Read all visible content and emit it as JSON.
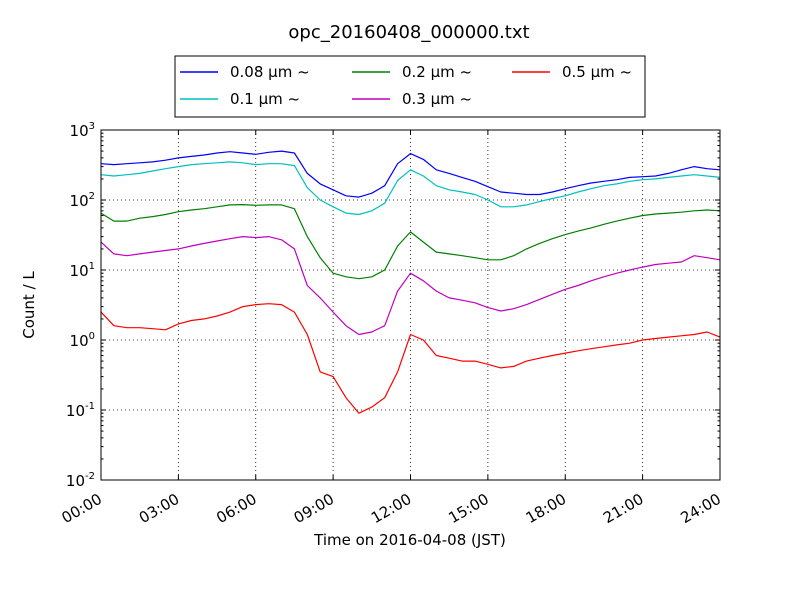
{
  "chart_data": {
    "type": "line",
    "title": "opc_20160408_000000.txt",
    "xlabel": "Time on 2016-04-08 (JST)",
    "ylabel": "Count / L",
    "yscale": "log",
    "ylim": [
      0.01,
      1000
    ],
    "xlim": [
      "2016-04-08 00:00",
      "2016-04-09 00:00"
    ],
    "x_ticks": [
      "00:00",
      "03:00",
      "06:00",
      "09:00",
      "12:00",
      "15:00",
      "18:00",
      "21:00",
      "24:00"
    ],
    "y_ticks": [
      {
        "base": "10",
        "exp": "-2",
        "value": 0.01
      },
      {
        "base": "10",
        "exp": "-1",
        "value": 0.1
      },
      {
        "base": "10",
        "exp": "0",
        "value": 1
      },
      {
        "base": "10",
        "exp": "1",
        "value": 10
      },
      {
        "base": "10",
        "exp": "2",
        "value": 100
      },
      {
        "base": "10",
        "exp": "3",
        "value": 1000
      }
    ],
    "grid": true,
    "legend_position": "above plot, centered, 3 columns",
    "x": [
      "00:00",
      "00:30",
      "01:00",
      "01:30",
      "02:00",
      "02:30",
      "03:00",
      "03:30",
      "04:00",
      "04:30",
      "05:00",
      "05:30",
      "06:00",
      "06:30",
      "07:00",
      "07:30",
      "08:00",
      "08:30",
      "09:00",
      "09:30",
      "10:00",
      "10:30",
      "11:00",
      "11:30",
      "12:00",
      "12:30",
      "13:00",
      "13:30",
      "14:00",
      "14:30",
      "15:00",
      "15:30",
      "16:00",
      "16:30",
      "17:00",
      "17:30",
      "18:00",
      "18:30",
      "19:00",
      "19:30",
      "20:00",
      "20:30",
      "21:00",
      "21:30",
      "22:00",
      "22:30",
      "23:00",
      "23:30",
      "24:00"
    ],
    "series": [
      {
        "name": "0.08 μm ~",
        "color": "#0000ff",
        "values": [
          330,
          320,
          330,
          340,
          350,
          370,
          400,
          420,
          440,
          470,
          490,
          470,
          450,
          480,
          500,
          470,
          240,
          170,
          140,
          115,
          110,
          125,
          160,
          330,
          460,
          380,
          270,
          240,
          210,
          185,
          155,
          130,
          125,
          120,
          120,
          130,
          145,
          160,
          175,
          185,
          195,
          210,
          215,
          220,
          240,
          270,
          300,
          280,
          270
        ]
      },
      {
        "name": "0.1 μm ~",
        "color": "#00bfbf",
        "values": [
          230,
          220,
          230,
          240,
          260,
          280,
          300,
          320,
          330,
          340,
          350,
          340,
          320,
          330,
          330,
          310,
          150,
          100,
          80,
          65,
          62,
          70,
          90,
          190,
          270,
          220,
          160,
          140,
          130,
          120,
          100,
          80,
          80,
          85,
          95,
          105,
          115,
          130,
          145,
          160,
          170,
          185,
          195,
          200,
          210,
          220,
          230,
          220,
          210
        ]
      },
      {
        "name": "0.2 μm ~",
        "color": "#008000",
        "values": [
          65,
          50,
          50,
          55,
          58,
          62,
          68,
          72,
          75,
          80,
          85,
          86,
          84,
          85,
          85,
          75,
          30,
          15,
          9,
          8,
          7.5,
          8,
          10,
          22,
          35,
          25,
          18,
          17,
          16,
          15,
          14,
          14,
          16,
          20,
          24,
          28,
          32,
          36,
          40,
          45,
          50,
          55,
          60,
          63,
          65,
          67,
          70,
          72,
          70
        ]
      },
      {
        "name": "0.3 μm ~",
        "color": "#bf00bf",
        "values": [
          25,
          17,
          16,
          17,
          18,
          19,
          20,
          22,
          24,
          26,
          28,
          30,
          29,
          30,
          27,
          20,
          6,
          4,
          2.5,
          1.6,
          1.2,
          1.3,
          1.6,
          5,
          9,
          7,
          5,
          4,
          3.7,
          3.4,
          2.9,
          2.6,
          2.8,
          3.2,
          3.8,
          4.5,
          5.3,
          6,
          7,
          8,
          9,
          10,
          11,
          12,
          12.5,
          13,
          16,
          15,
          14
        ]
      },
      {
        "name": "0.5 μm ~",
        "color": "#ff0000",
        "values": [
          2.5,
          1.6,
          1.5,
          1.5,
          1.45,
          1.4,
          1.7,
          1.9,
          2.0,
          2.2,
          2.5,
          3.0,
          3.2,
          3.3,
          3.2,
          2.5,
          1.2,
          0.35,
          0.3,
          0.15,
          0.09,
          0.11,
          0.15,
          0.35,
          1.2,
          1.0,
          0.6,
          0.55,
          0.5,
          0.5,
          0.45,
          0.4,
          0.42,
          0.5,
          0.55,
          0.6,
          0.65,
          0.7,
          0.75,
          0.8,
          0.85,
          0.9,
          1.0,
          1.05,
          1.1,
          1.15,
          1.2,
          1.3,
          1.1
        ]
      }
    ]
  }
}
